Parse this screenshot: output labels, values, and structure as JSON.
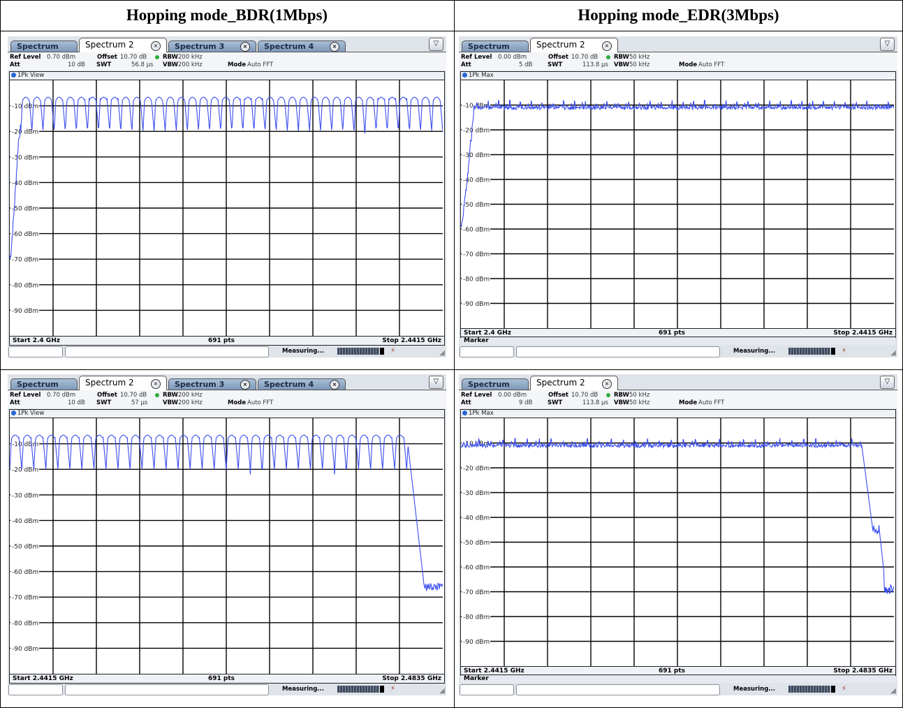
{
  "table": {
    "col_left_heading": "Hopping mode_BDR(1Mbps)",
    "col_right_heading": "Hopping mode_EDR(3Mbps)"
  },
  "colors": {
    "trace": "#3a4df0",
    "grid": "#000000",
    "dot_blue": "#2a67d6",
    "dot_green": "#2fae3e"
  },
  "panels": [
    {
      "tabs": [
        "Spectrum",
        "Spectrum 2",
        "Spectrum 3",
        "Spectrum 4"
      ],
      "active_tab": 1,
      "ref_level_label": "Ref Level",
      "ref_level": "0.70 dBm",
      "offset_label": "Offset",
      "offset": "10.70 dB",
      "rbw_label": "RBW",
      "rbw": "200 kHz",
      "att_label": "Att",
      "att": "10 dB",
      "swt_label": "SWT",
      "swt": "56.8 µs",
      "vbw_label": "VBW",
      "vbw": "200 kHz",
      "mode_label": "Mode",
      "mode": "Auto FFT",
      "trace_label": "1Pk View",
      "start": "Start 2.4 GHz",
      "pts": "691 pts",
      "stop": "Stop 2.4415 GHz",
      "marker": "",
      "status_text": "Measuring..."
    },
    {
      "tabs": [
        "Spectrum",
        "Spectrum 2"
      ],
      "active_tab": 1,
      "ref_level_label": "Ref Level",
      "ref_level": "0.00 dBm",
      "offset_label": "Offset",
      "offset": "10.70 dB",
      "rbw_label": "RBW",
      "rbw": "50 kHz",
      "att_label": "Att",
      "att": "5 dB",
      "swt_label": "SWT",
      "swt": "113.8 µs",
      "vbw_label": "VBW",
      "vbw": "50 kHz",
      "mode_label": "Mode",
      "mode": "Auto FFT",
      "trace_label": "1Pk Max",
      "start": "Start 2.4 GHz",
      "pts": "691 pts",
      "stop": "Stop 2.4415 GHz",
      "marker": "Marker",
      "status_text": "Measuring..."
    },
    {
      "tabs": [
        "Spectrum",
        "Spectrum 2",
        "Spectrum 3",
        "Spectrum 4"
      ],
      "active_tab": 1,
      "ref_level_label": "Ref Level",
      "ref_level": "0.70 dBm",
      "offset_label": "Offset",
      "offset": "10.70 dB",
      "rbw_label": "RBW",
      "rbw": "200 kHz",
      "att_label": "Att",
      "att": "10 dB",
      "swt_label": "SWT",
      "swt": "57 µs",
      "vbw_label": "VBW",
      "vbw": "200 kHz",
      "mode_label": "Mode",
      "mode": "Auto FFT",
      "trace_label": "1Pk View",
      "start": "Start 2.4415 GHz",
      "pts": "691 pts",
      "stop": "Stop 2.4835 GHz",
      "marker": "",
      "status_text": "Measuring..."
    },
    {
      "tabs": [
        "Spectrum",
        "Spectrum 2"
      ],
      "active_tab": 1,
      "ref_level_label": "Ref Level",
      "ref_level": "0.00 dBm",
      "offset_label": "Offset",
      "offset": "10.70 dB",
      "rbw_label": "RBW",
      "rbw": "50 kHz",
      "att_label": "Att",
      "att": "9 dB",
      "swt_label": "SWT",
      "swt": "113.8 µs",
      "vbw_label": "VBW",
      "vbw": "50 kHz",
      "mode_label": "Mode",
      "mode": "Auto FFT",
      "trace_label": "1Pk Max",
      "start": "Start 2.4415 GHz",
      "pts": "691 pts",
      "stop": "Stop 2.4835 GHz",
      "marker": "Marker",
      "status_text": "Measuring..."
    }
  ],
  "chart_data": [
    {
      "type": "line",
      "ylim": [
        -100,
        0
      ],
      "ytick_labels": [
        "-10 dBm",
        "-20 dBm",
        "-30 dBm",
        "-40 dBm",
        "-50 dBm",
        "-60 dBm",
        "-70 dBm",
        "-80 dBm",
        "-90 dBm"
      ],
      "x_start_ghz": 2.4,
      "x_stop_ghz": 2.4415,
      "pattern": "hopping_bdr",
      "series": [
        {
          "peaks": 39,
          "top_dbm": -7,
          "bottom_dbm": -20,
          "deep_dips": [
            {
              "index": 31,
              "dbm": -22
            }
          ],
          "rise": {
            "end_frac": 0.025,
            "from_dbm": -70
          }
        }
      ]
    },
    {
      "type": "line",
      "ylim": [
        -100,
        0
      ],
      "ytick_labels": [
        "-10 dBm",
        "-20 dBm",
        "-30 dBm",
        "-40 dBm",
        "-50 dBm",
        "-60 dBm",
        "-70 dBm",
        "-80 dBm",
        "-90 dBm"
      ],
      "x_start_ghz": 2.4,
      "x_stop_ghz": 2.4415,
      "pattern": "hopping_edr",
      "series": [
        {
          "peaks": 40,
          "top_dbm": -8,
          "floor_dbm": -11,
          "rise": {
            "end_frac": 0.03,
            "from_dbm": -58
          }
        }
      ]
    },
    {
      "type": "line",
      "ylim": [
        -100,
        0
      ],
      "ytick_labels": [
        "-10 dBm",
        "-20 dBm",
        "-30 dBm",
        "-40 dBm",
        "-50 dBm",
        "-60 dBm",
        "-70 dBm",
        "-80 dBm",
        "-90 dBm"
      ],
      "x_start_ghz": 2.4415,
      "x_stop_ghz": 2.4835,
      "pattern": "hopping_bdr",
      "series": [
        {
          "peaks": 36,
          "top_dbm": -7,
          "bottom_dbm": -20,
          "deep_dips": [
            {
              "index": 20,
              "dbm": -22
            },
            {
              "index": 27,
              "dbm": -22
            }
          ],
          "fall": {
            "start_frac": 0.905,
            "to_dbm": -66
          }
        }
      ]
    },
    {
      "type": "line",
      "ylim": [
        -100,
        0
      ],
      "ytick_labels": [
        "-10 dBm",
        "-20 dBm",
        "-30 dBm",
        "-40 dBm",
        "-50 dBm",
        "-60 dBm",
        "-70 dBm",
        "-80 dBm",
        "-90 dBm"
      ],
      "x_start_ghz": 2.4415,
      "x_stop_ghz": 2.4835,
      "pattern": "hopping_edr",
      "series": [
        {
          "peaks": 36,
          "top_dbm": -8,
          "floor_dbm": -11,
          "fall": {
            "start_frac": 0.925,
            "mid_dbm": -45,
            "to_dbm": -69
          }
        }
      ]
    }
  ]
}
